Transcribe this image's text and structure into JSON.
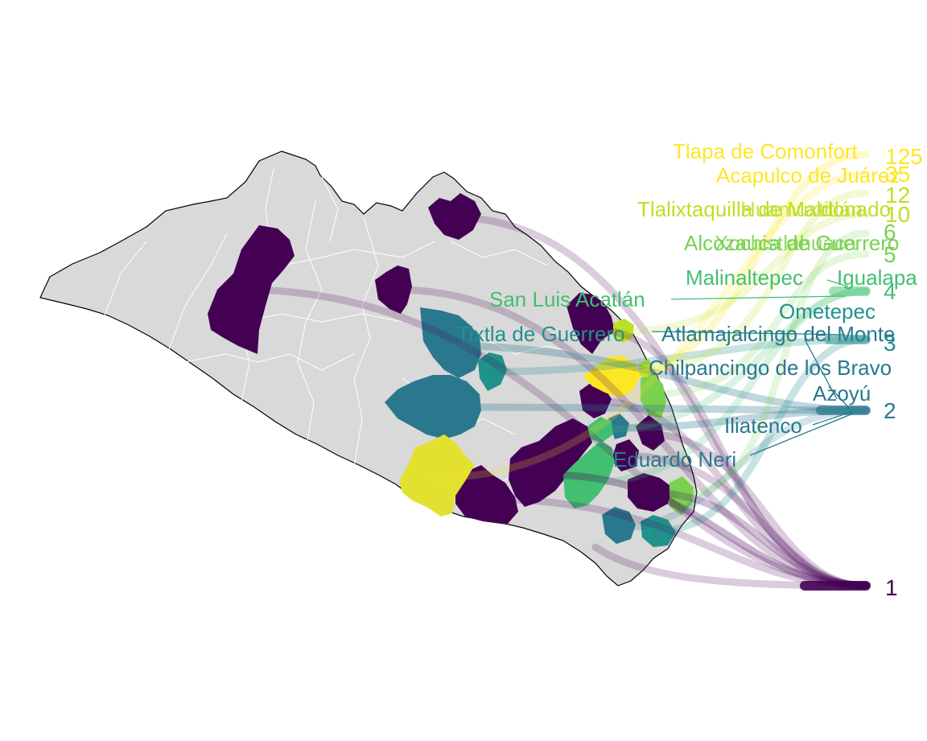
{
  "palette": {
    "purple": "#440154",
    "teal_dark": "#2a788e",
    "teal": "#21918c",
    "teal_green": "#22a884",
    "green": "#43bf71",
    "green_light": "#7ad151",
    "yellow_green": "#bddf26",
    "yellow": "#fde725",
    "land_base": "#d9d9d9",
    "border": "#ffffff"
  },
  "map": {
    "region": "Guerrero",
    "base_fill": "#d9d9d9",
    "outline": "#000000"
  },
  "scale": {
    "values": [
      {
        "text": "1",
        "color": "#440154"
      },
      {
        "text": "2",
        "color": "#2a788e"
      },
      {
        "text": "3",
        "color": "#21918c"
      },
      {
        "text": "4",
        "color": "#43bf71"
      },
      {
        "text": "5",
        "color": "#7ad151"
      },
      {
        "text": "6",
        "color": "#7ad151"
      },
      {
        "text": "10",
        "color": "#bddf26"
      },
      {
        "text": "12",
        "color": "#bddf26"
      },
      {
        "text": "35",
        "color": "#fde725"
      },
      {
        "text": "125",
        "color": "#fde725"
      }
    ]
  },
  "places": [
    {
      "name": "Tlapa de Comonfort",
      "color": "#fde725"
    },
    {
      "name": "Acapulco de Juárez",
      "color": "#fde725"
    },
    {
      "name": "Tlalixtaquilla de Maldonado",
      "color": "#bddf26"
    },
    {
      "name": "Huamuxtitlán",
      "color": "#bddf26"
    },
    {
      "name": "Alcozauca de Guerrero",
      "color": "#7ad151"
    },
    {
      "name": "Xochistlahuaca",
      "color": "#7ad151"
    },
    {
      "name": "Malinaltepec",
      "color": "#43bf71"
    },
    {
      "name": "Igualapa",
      "color": "#43bf71"
    },
    {
      "name": "San Luis Acatlán",
      "color": "#43bf71"
    },
    {
      "name": "Ometepec",
      "color": "#21918c"
    },
    {
      "name": "Tixtla de Guerrero",
      "color": "#21918c"
    },
    {
      "name": "Atlamajalcingo del Monte",
      "color": "#2a788e"
    },
    {
      "name": "Chilpancingo de los Bravo",
      "color": "#2a788e"
    },
    {
      "name": "Azoyú",
      "color": "#2a788e"
    },
    {
      "name": "Iliatenco",
      "color": "#2a788e"
    },
    {
      "name": "Eduardo Neri",
      "color": "#2a788e"
    }
  ]
}
